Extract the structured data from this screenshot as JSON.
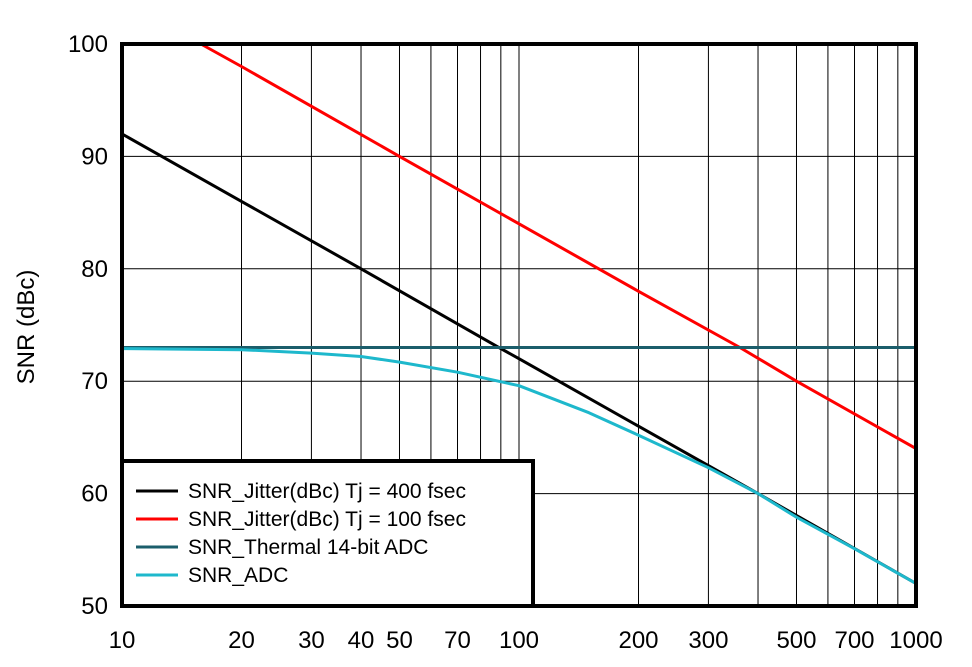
{
  "chart_data": {
    "type": "line",
    "title": "",
    "xlabel": "",
    "ylabel": "SNR (dBc)",
    "x_scale": "log",
    "xlim": [
      10,
      1000
    ],
    "ylim": [
      50,
      100
    ],
    "grid": true,
    "legend_position": "bottom-left",
    "x_ticks": [
      10,
      20,
      30,
      40,
      50,
      70,
      100,
      200,
      300,
      500,
      700,
      1000
    ],
    "x_tick_labels": [
      "10",
      "20",
      "30",
      "40",
      "50",
      "70",
      "100",
      "200",
      "300",
      "500",
      "700",
      "1000"
    ],
    "x_minor_grid": [
      60,
      80,
      90,
      400,
      600,
      800,
      900
    ],
    "y_ticks": [
      50,
      60,
      70,
      80,
      90,
      100
    ],
    "y_tick_labels": [
      "50",
      "60",
      "70",
      "80",
      "90",
      "100"
    ],
    "series": [
      {
        "name": "SNR_Jitter(dBc) Tj = 400 fsec",
        "color": "#000000",
        "x": [
          10,
          20,
          40,
          88,
          100,
          200,
          400,
          1000
        ],
        "y": [
          92,
          86,
          80,
          73.1,
          72,
          66,
          60,
          52
        ]
      },
      {
        "name": "SNR_Jitter(dBc) Tj = 100 fsec",
        "color": "#ff0000",
        "x": [
          15.8,
          20,
          50,
          100,
          200,
          360,
          500,
          1000
        ],
        "y": [
          100,
          98,
          90,
          84,
          78,
          73,
          70,
          64
        ]
      },
      {
        "name": "SNR_Thermal 14-bit ADC",
        "color": "#1b5e6b",
        "x": [
          10,
          1000
        ],
        "y": [
          73,
          73
        ]
      },
      {
        "name": "SNR_ADC",
        "color": "#1eb8cc",
        "x": [
          10,
          20,
          30,
          40,
          50,
          70,
          100,
          150,
          200,
          300,
          400,
          500,
          700,
          1000
        ],
        "y": [
          72.9,
          72.8,
          72.5,
          72.2,
          71.7,
          70.8,
          69.6,
          67.2,
          65.2,
          62.3,
          60,
          57.9,
          55.1,
          52
        ]
      }
    ]
  }
}
